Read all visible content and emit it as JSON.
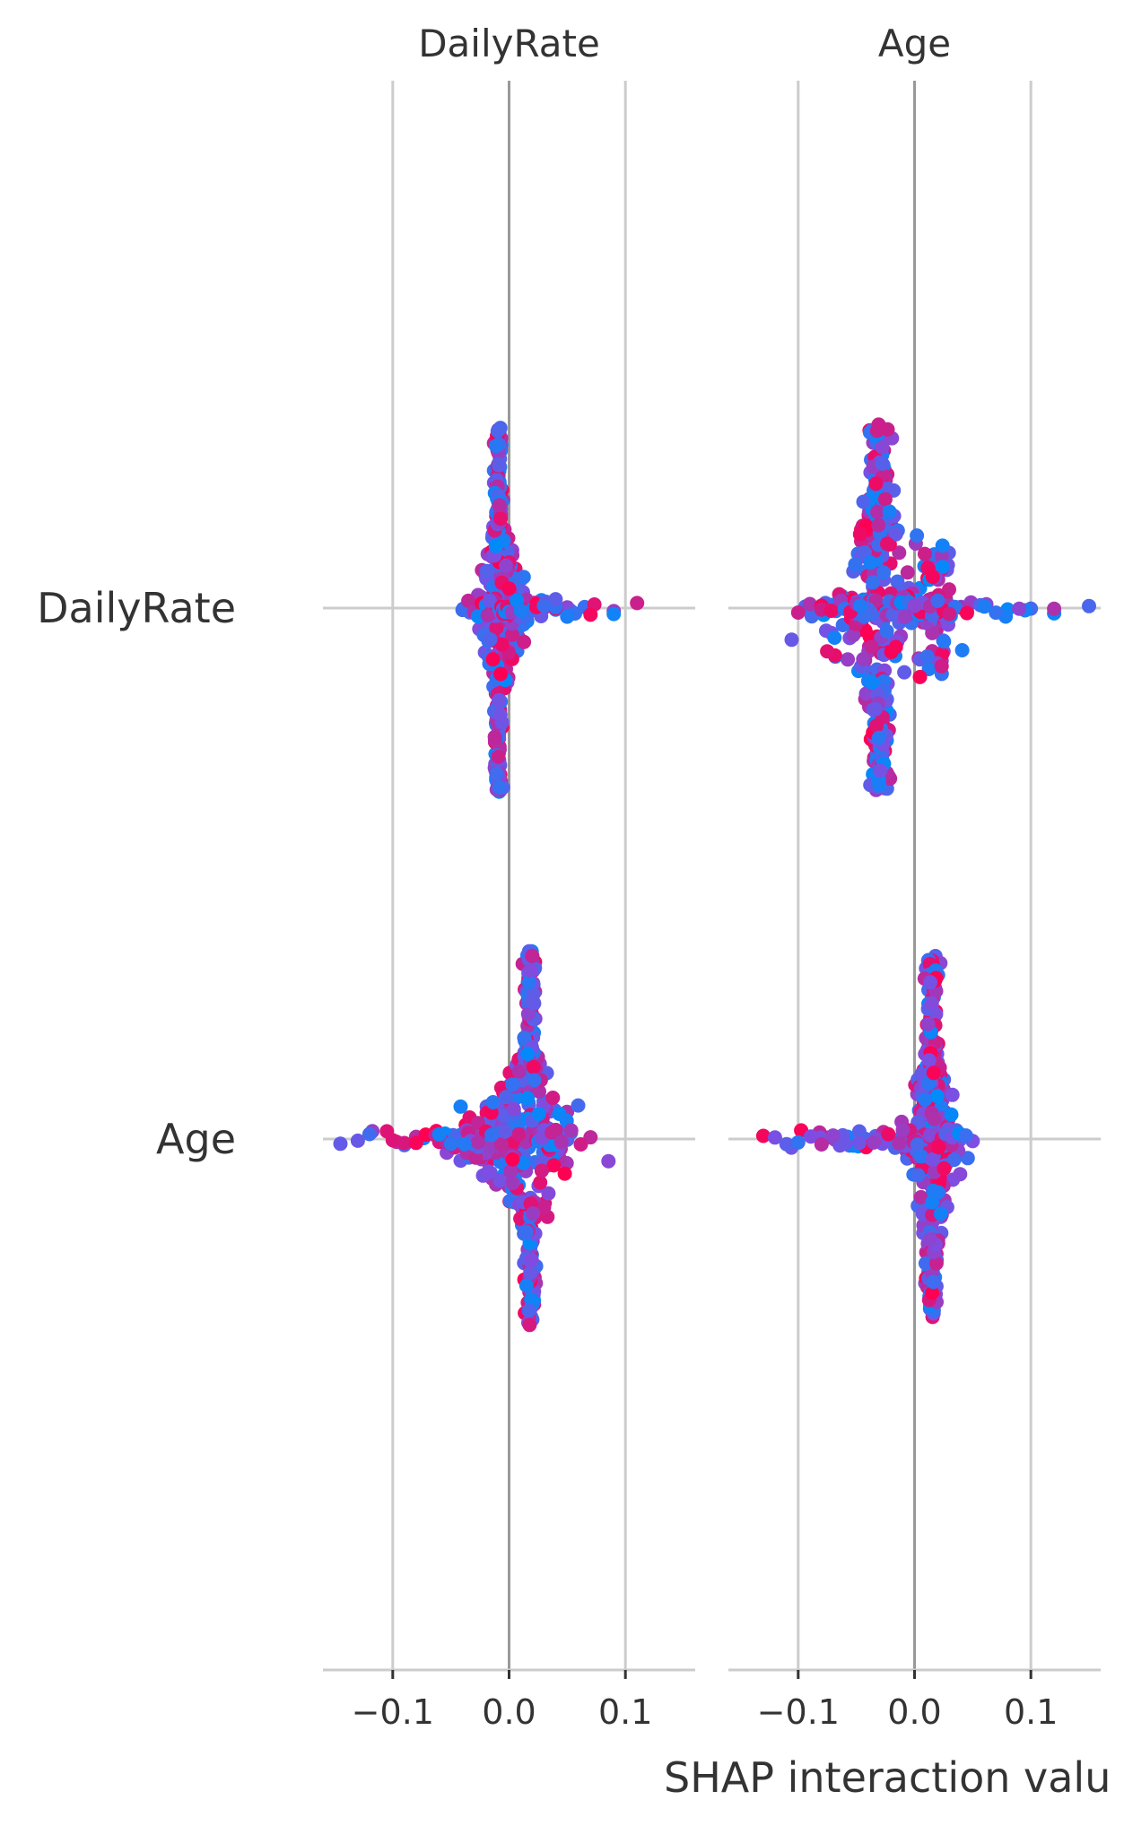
{
  "chart_data": {
    "type": "scatter",
    "subtype": "SHAP interaction beeswarm",
    "panels": [
      {
        "title": "DailyRate",
        "xlim": [
          -0.16,
          0.16
        ]
      },
      {
        "title": "Age",
        "xlim": [
          -0.16,
          0.16
        ]
      }
    ],
    "rows": [
      "DailyRate",
      "Age"
    ],
    "xticks": [
      -0.1,
      0.0,
      0.1
    ],
    "xtick_labels": [
      "−0.1",
      "0.0",
      "0.1"
    ],
    "xlabel": "SHAP interaction valu",
    "grid": true,
    "colors": {
      "low": "#008bfb",
      "mid": "#7d4ee2",
      "high": "#ff0052",
      "grid": "#cccccc",
      "zero_line": "#999999",
      "text": "#333333"
    },
    "distributions": [
      {
        "panel": "DailyRate",
        "row": "DailyRate",
        "center": -0.01,
        "points_x": [
          -0.04,
          -0.03,
          -0.02,
          0.0,
          0.01,
          0.02,
          0.03,
          0.04,
          0.05,
          0.065,
          0.09,
          0.11
        ]
      },
      {
        "panel": "Age",
        "row": "DailyRate",
        "center": -0.03,
        "points_x": [
          -0.1,
          -0.09,
          -0.08,
          -0.06,
          -0.05,
          0.02,
          0.04,
          0.06,
          0.08,
          0.1,
          0.12,
          0.15
        ]
      },
      {
        "panel": "DailyRate",
        "row": "Age",
        "center": 0.02,
        "points_x": [
          -0.145,
          -0.13,
          -0.12,
          -0.1,
          -0.09,
          -0.08,
          -0.06,
          -0.05,
          0.04,
          0.05,
          0.07
        ]
      },
      {
        "panel": "Age",
        "row": "Age",
        "center": 0.015,
        "points_x": [
          -0.13,
          -0.12,
          -0.11,
          -0.1,
          -0.08,
          -0.07,
          -0.06,
          0.04,
          0.05
        ]
      }
    ]
  }
}
